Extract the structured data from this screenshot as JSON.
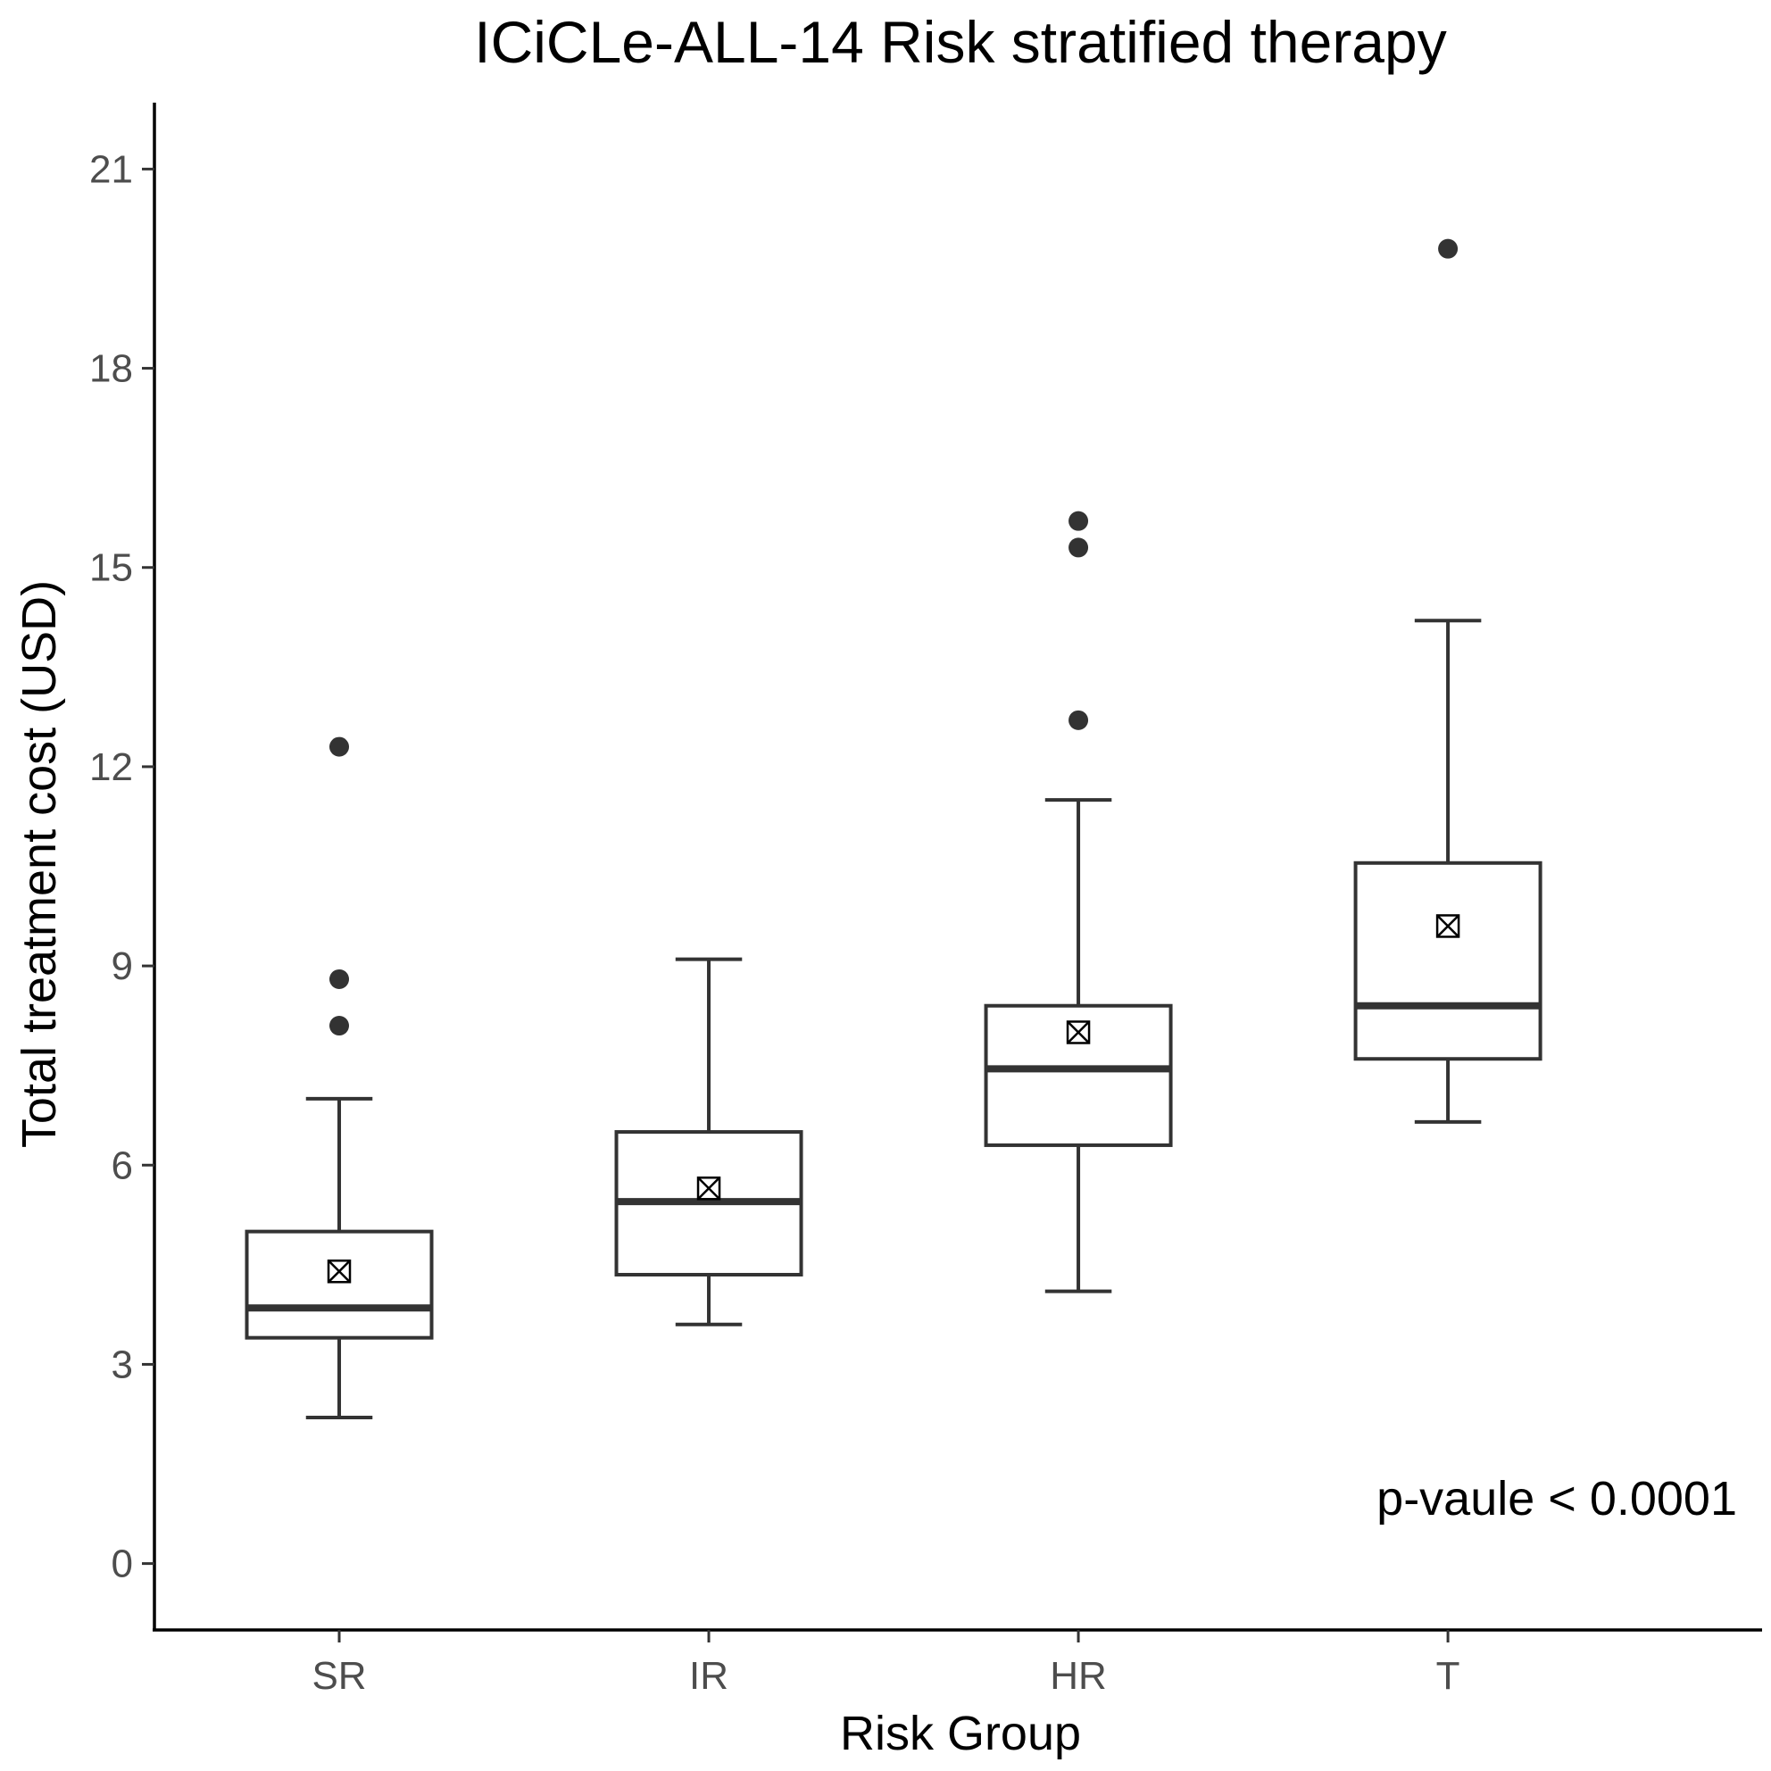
{
  "chart_data": {
    "type": "box",
    "title": "ICiCLe-ALL-14 Risk stratified therapy",
    "xlabel": "Risk Group",
    "ylabel": "Total treatment cost (USD)",
    "ylim": [
      -1,
      22
    ],
    "yticks": [
      0,
      3,
      6,
      9,
      12,
      15,
      18,
      21
    ],
    "grid": false,
    "categories": [
      "SR",
      "IR",
      "HR",
      "T"
    ],
    "groups": [
      {
        "category": "SR",
        "whisker_low": 2.2,
        "q1": 3.4,
        "median": 3.85,
        "q3": 5.0,
        "whisker_high": 7.0,
        "mean": 4.4,
        "outliers": [
          8.1,
          8.8,
          12.3
        ]
      },
      {
        "category": "IR",
        "whisker_low": 3.6,
        "q1": 4.35,
        "median": 5.45,
        "q3": 6.5,
        "whisker_high": 9.1,
        "mean": 5.65,
        "outliers": []
      },
      {
        "category": "HR",
        "whisker_low": 4.1,
        "q1": 6.3,
        "median": 7.45,
        "q3": 8.4,
        "whisker_high": 11.5,
        "mean": 8.0,
        "outliers": [
          12.7,
          15.3,
          15.7
        ]
      },
      {
        "category": "T",
        "whisker_low": 6.65,
        "q1": 7.6,
        "median": 8.4,
        "q3": 10.55,
        "whisker_high": 14.2,
        "mean": 9.6,
        "outliers": [
          19.8
        ]
      }
    ],
    "annotation": "p-vaule < 0.0001",
    "annotation_placement": "bottom-right"
  }
}
